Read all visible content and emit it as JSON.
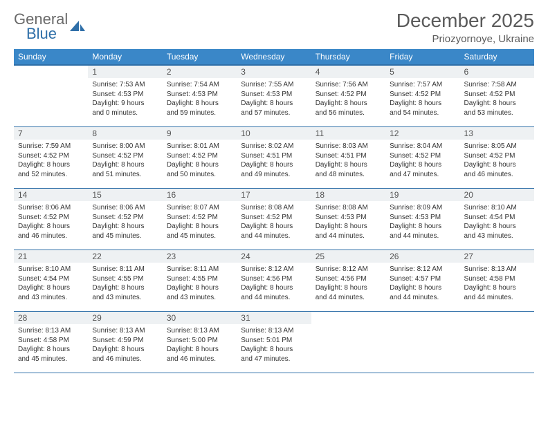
{
  "brand": {
    "word1": "General",
    "word2": "Blue"
  },
  "title": {
    "month": "December 2025",
    "location": "Priozyornoye, Ukraine"
  },
  "colors": {
    "header_bg": "#3a87c8",
    "header_border": "#2f6fa8",
    "row_border": "#2f6fa8",
    "daynum_bg": "#eef1f3",
    "text": "#333333",
    "title_text": "#5a5a5a",
    "logo_gray": "#6a6a6a",
    "logo_blue": "#2f6fa8"
  },
  "weekdays": [
    "Sunday",
    "Monday",
    "Tuesday",
    "Wednesday",
    "Thursday",
    "Friday",
    "Saturday"
  ],
  "weeks": [
    [
      {
        "n": "",
        "lines": []
      },
      {
        "n": "1",
        "lines": [
          "Sunrise: 7:53 AM",
          "Sunset: 4:53 PM",
          "Daylight: 9 hours",
          "and 0 minutes."
        ]
      },
      {
        "n": "2",
        "lines": [
          "Sunrise: 7:54 AM",
          "Sunset: 4:53 PM",
          "Daylight: 8 hours",
          "and 59 minutes."
        ]
      },
      {
        "n": "3",
        "lines": [
          "Sunrise: 7:55 AM",
          "Sunset: 4:53 PM",
          "Daylight: 8 hours",
          "and 57 minutes."
        ]
      },
      {
        "n": "4",
        "lines": [
          "Sunrise: 7:56 AM",
          "Sunset: 4:52 PM",
          "Daylight: 8 hours",
          "and 56 minutes."
        ]
      },
      {
        "n": "5",
        "lines": [
          "Sunrise: 7:57 AM",
          "Sunset: 4:52 PM",
          "Daylight: 8 hours",
          "and 54 minutes."
        ]
      },
      {
        "n": "6",
        "lines": [
          "Sunrise: 7:58 AM",
          "Sunset: 4:52 PM",
          "Daylight: 8 hours",
          "and 53 minutes."
        ]
      }
    ],
    [
      {
        "n": "7",
        "lines": [
          "Sunrise: 7:59 AM",
          "Sunset: 4:52 PM",
          "Daylight: 8 hours",
          "and 52 minutes."
        ]
      },
      {
        "n": "8",
        "lines": [
          "Sunrise: 8:00 AM",
          "Sunset: 4:52 PM",
          "Daylight: 8 hours",
          "and 51 minutes."
        ]
      },
      {
        "n": "9",
        "lines": [
          "Sunrise: 8:01 AM",
          "Sunset: 4:52 PM",
          "Daylight: 8 hours",
          "and 50 minutes."
        ]
      },
      {
        "n": "10",
        "lines": [
          "Sunrise: 8:02 AM",
          "Sunset: 4:51 PM",
          "Daylight: 8 hours",
          "and 49 minutes."
        ]
      },
      {
        "n": "11",
        "lines": [
          "Sunrise: 8:03 AM",
          "Sunset: 4:51 PM",
          "Daylight: 8 hours",
          "and 48 minutes."
        ]
      },
      {
        "n": "12",
        "lines": [
          "Sunrise: 8:04 AM",
          "Sunset: 4:52 PM",
          "Daylight: 8 hours",
          "and 47 minutes."
        ]
      },
      {
        "n": "13",
        "lines": [
          "Sunrise: 8:05 AM",
          "Sunset: 4:52 PM",
          "Daylight: 8 hours",
          "and 46 minutes."
        ]
      }
    ],
    [
      {
        "n": "14",
        "lines": [
          "Sunrise: 8:06 AM",
          "Sunset: 4:52 PM",
          "Daylight: 8 hours",
          "and 46 minutes."
        ]
      },
      {
        "n": "15",
        "lines": [
          "Sunrise: 8:06 AM",
          "Sunset: 4:52 PM",
          "Daylight: 8 hours",
          "and 45 minutes."
        ]
      },
      {
        "n": "16",
        "lines": [
          "Sunrise: 8:07 AM",
          "Sunset: 4:52 PM",
          "Daylight: 8 hours",
          "and 45 minutes."
        ]
      },
      {
        "n": "17",
        "lines": [
          "Sunrise: 8:08 AM",
          "Sunset: 4:52 PM",
          "Daylight: 8 hours",
          "and 44 minutes."
        ]
      },
      {
        "n": "18",
        "lines": [
          "Sunrise: 8:08 AM",
          "Sunset: 4:53 PM",
          "Daylight: 8 hours",
          "and 44 minutes."
        ]
      },
      {
        "n": "19",
        "lines": [
          "Sunrise: 8:09 AM",
          "Sunset: 4:53 PM",
          "Daylight: 8 hours",
          "and 44 minutes."
        ]
      },
      {
        "n": "20",
        "lines": [
          "Sunrise: 8:10 AM",
          "Sunset: 4:54 PM",
          "Daylight: 8 hours",
          "and 43 minutes."
        ]
      }
    ],
    [
      {
        "n": "21",
        "lines": [
          "Sunrise: 8:10 AM",
          "Sunset: 4:54 PM",
          "Daylight: 8 hours",
          "and 43 minutes."
        ]
      },
      {
        "n": "22",
        "lines": [
          "Sunrise: 8:11 AM",
          "Sunset: 4:55 PM",
          "Daylight: 8 hours",
          "and 43 minutes."
        ]
      },
      {
        "n": "23",
        "lines": [
          "Sunrise: 8:11 AM",
          "Sunset: 4:55 PM",
          "Daylight: 8 hours",
          "and 43 minutes."
        ]
      },
      {
        "n": "24",
        "lines": [
          "Sunrise: 8:12 AM",
          "Sunset: 4:56 PM",
          "Daylight: 8 hours",
          "and 44 minutes."
        ]
      },
      {
        "n": "25",
        "lines": [
          "Sunrise: 8:12 AM",
          "Sunset: 4:56 PM",
          "Daylight: 8 hours",
          "and 44 minutes."
        ]
      },
      {
        "n": "26",
        "lines": [
          "Sunrise: 8:12 AM",
          "Sunset: 4:57 PM",
          "Daylight: 8 hours",
          "and 44 minutes."
        ]
      },
      {
        "n": "27",
        "lines": [
          "Sunrise: 8:13 AM",
          "Sunset: 4:58 PM",
          "Daylight: 8 hours",
          "and 44 minutes."
        ]
      }
    ],
    [
      {
        "n": "28",
        "lines": [
          "Sunrise: 8:13 AM",
          "Sunset: 4:58 PM",
          "Daylight: 8 hours",
          "and 45 minutes."
        ]
      },
      {
        "n": "29",
        "lines": [
          "Sunrise: 8:13 AM",
          "Sunset: 4:59 PM",
          "Daylight: 8 hours",
          "and 46 minutes."
        ]
      },
      {
        "n": "30",
        "lines": [
          "Sunrise: 8:13 AM",
          "Sunset: 5:00 PM",
          "Daylight: 8 hours",
          "and 46 minutes."
        ]
      },
      {
        "n": "31",
        "lines": [
          "Sunrise: 8:13 AM",
          "Sunset: 5:01 PM",
          "Daylight: 8 hours",
          "and 47 minutes."
        ]
      },
      {
        "n": "",
        "lines": []
      },
      {
        "n": "",
        "lines": []
      },
      {
        "n": "",
        "lines": []
      }
    ]
  ]
}
